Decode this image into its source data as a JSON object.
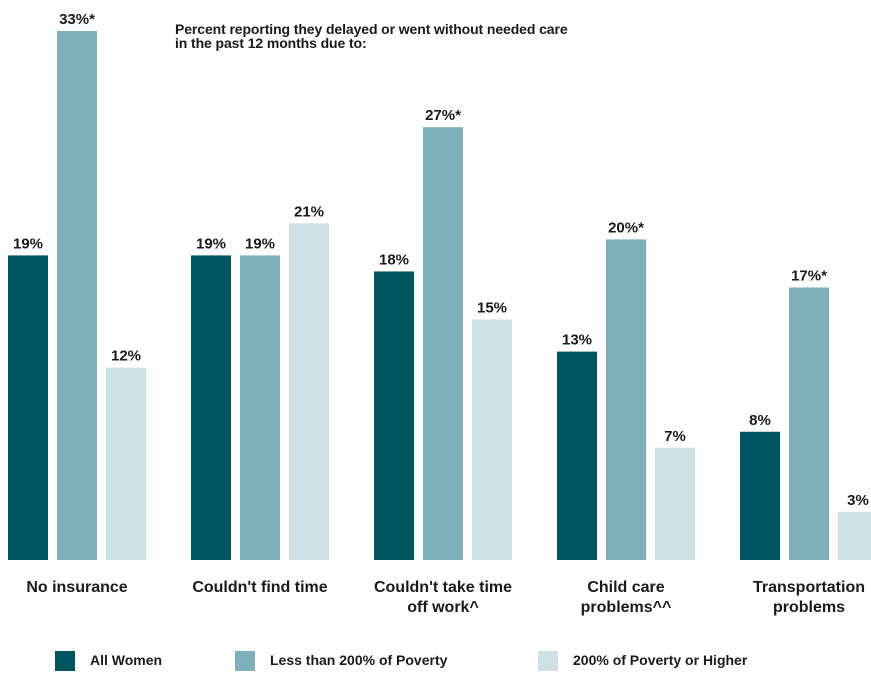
{
  "chart_data": {
    "type": "bar",
    "title_lines": [
      "Percent reporting they delayed or went without needed care",
      "in the past 12 months due to:"
    ],
    "categories": [
      [
        "No insurance"
      ],
      [
        "Couldn't find time"
      ],
      [
        "Couldn't take time",
        "off work^"
      ],
      [
        "Child care",
        "problems^^"
      ],
      [
        "Transportation",
        "problems"
      ]
    ],
    "series": [
      {
        "name": "All Women",
        "color": "#00545e",
        "values": [
          19,
          19,
          18,
          13,
          8
        ],
        "labels": [
          "19%",
          "19%",
          "18%",
          "13%",
          "8%"
        ]
      },
      {
        "name": "Less than 200% of Poverty",
        "color": "#7fb0b9",
        "values": [
          33,
          19,
          27,
          20,
          17
        ],
        "labels": [
          "33%*",
          "19%",
          "27%*",
          "20%*",
          "17%*"
        ]
      },
      {
        "name": "200% of Poverty or Higher",
        "color": "#cde0e3",
        "values": [
          12,
          21,
          15,
          7,
          3
        ],
        "labels": [
          "12%",
          "21%",
          "15%",
          "7%",
          "3%"
        ]
      }
    ],
    "ylim": [
      0,
      33
    ],
    "grid": false,
    "legend_position": "bottom"
  }
}
